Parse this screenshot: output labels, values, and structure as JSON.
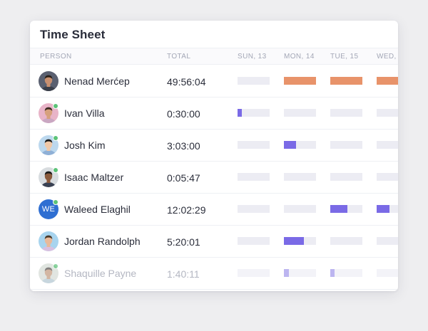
{
  "title": "Time Sheet",
  "columns": {
    "person": "PERSON",
    "total": "TOTAL",
    "days": [
      "SUN, 13",
      "MON, 14",
      "TUE, 15",
      "WED,"
    ]
  },
  "colors": {
    "accent_orange": "#e8936a",
    "accent_purple": "#7a6ae6",
    "track": "#ececf3",
    "online": "#5cc378"
  },
  "rows": [
    {
      "name": "Nenad Merćep",
      "total": "49:56:04",
      "online": false,
      "avatar": "photo",
      "days": [
        {
          "level": 0,
          "color": "orange"
        },
        {
          "level": 1,
          "color": "orange"
        },
        {
          "level": 1,
          "color": "orange"
        },
        {
          "level": 1,
          "color": "orange"
        }
      ]
    },
    {
      "name": "Ivan Villa",
      "total": "0:30:00",
      "online": true,
      "avatar": "photo",
      "days": [
        {
          "level": 0.14,
          "color": "purple"
        },
        {
          "level": 0,
          "color": "purple"
        },
        {
          "level": 0,
          "color": "purple"
        },
        {
          "level": 0,
          "color": "purple"
        }
      ]
    },
    {
      "name": "Josh Kim",
      "total": "3:03:00",
      "online": true,
      "avatar": "photo",
      "days": [
        {
          "level": 0,
          "color": "purple"
        },
        {
          "level": 0.38,
          "color": "purple"
        },
        {
          "level": 0,
          "color": "purple"
        },
        {
          "level": 0,
          "color": "purple"
        }
      ]
    },
    {
      "name": "Isaac Maltzer",
      "total": "0:05:47",
      "online": true,
      "avatar": "photo",
      "days": [
        {
          "level": 0,
          "color": "purple"
        },
        {
          "level": 0,
          "color": "purple"
        },
        {
          "level": 0,
          "color": "purple"
        },
        {
          "level": 0,
          "color": "purple"
        }
      ]
    },
    {
      "name": "Waleed Elaghil",
      "total": "12:02:29",
      "online": true,
      "avatar": "initials",
      "initials": "WE",
      "days": [
        {
          "level": 0,
          "color": "purple"
        },
        {
          "level": 0,
          "color": "purple"
        },
        {
          "level": 0.53,
          "color": "purple"
        },
        {
          "level": 0.4,
          "color": "purple"
        }
      ]
    },
    {
      "name": "Jordan Randolph",
      "total": "5:20:01",
      "online": false,
      "avatar": "photo",
      "days": [
        {
          "level": 0,
          "color": "purple"
        },
        {
          "level": 0.62,
          "color": "purple"
        },
        {
          "level": 0,
          "color": "purple"
        },
        {
          "level": 0,
          "color": "purple"
        }
      ]
    },
    {
      "name": "Shaquille Payne",
      "total": "1:40:11",
      "online": true,
      "avatar": "photo",
      "faded": true,
      "days": [
        {
          "level": 0,
          "color": "purple"
        },
        {
          "level": 0.16,
          "color": "purple"
        },
        {
          "level": 0.14,
          "color": "purple"
        },
        {
          "level": 0,
          "color": "purple"
        }
      ]
    }
  ]
}
